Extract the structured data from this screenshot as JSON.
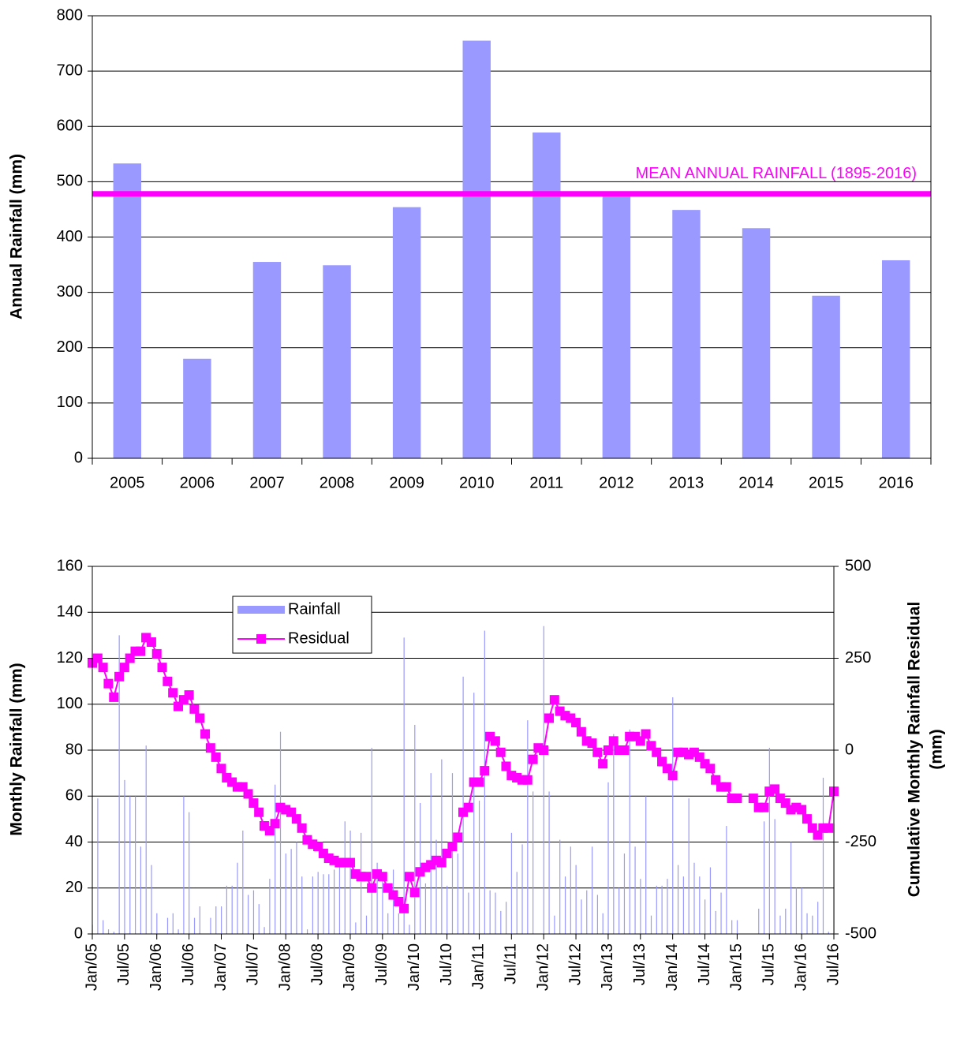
{
  "chart_data": [
    {
      "type": "bar",
      "ylabel": "Annual Rainfall (mm)",
      "categories": [
        "2005",
        "2006",
        "2007",
        "2008",
        "2009",
        "2010",
        "2011",
        "2012",
        "2013",
        "2014",
        "2015",
        "2016"
      ],
      "values": [
        533,
        180,
        355,
        349,
        454,
        755,
        589,
        480,
        449,
        416,
        294,
        358
      ],
      "color": "#9999ff",
      "ylim": [
        0,
        800
      ],
      "yticks": [
        0,
        100,
        200,
        300,
        400,
        500,
        600,
        700,
        800
      ],
      "grid": true,
      "mean_line": {
        "value": 478,
        "label": "MEAN ANNUAL RAINFALL (1895-2016)",
        "color": "#ff00ff"
      }
    },
    {
      "type": "combo",
      "ylabel": "Monthly Rainfall (mm)",
      "y2label": [
        "Cumulative Monthly Rainfall Residual",
        "(mm)"
      ],
      "categories": [
        "Jan/05",
        null,
        null,
        null,
        null,
        null,
        "Jul/05",
        null,
        null,
        null,
        null,
        null,
        "Jan/06",
        null,
        null,
        null,
        null,
        null,
        "Jul/06",
        null,
        null,
        null,
        null,
        null,
        "Jan/07",
        null,
        null,
        null,
        null,
        null,
        "Jul/07",
        null,
        null,
        null,
        null,
        null,
        "Jan/08",
        null,
        null,
        null,
        null,
        null,
        "Jul/08",
        null,
        null,
        null,
        null,
        null,
        "Jan/09",
        null,
        null,
        null,
        null,
        null,
        "Jul/09",
        null,
        null,
        null,
        null,
        null,
        "Jan/10",
        null,
        null,
        null,
        null,
        null,
        "Jul/10",
        null,
        null,
        null,
        null,
        null,
        "Jan/11",
        null,
        null,
        null,
        null,
        null,
        "Jul/11",
        null,
        null,
        null,
        null,
        null,
        "Jan/12",
        null,
        null,
        null,
        null,
        null,
        "Jul/12",
        null,
        null,
        null,
        null,
        null,
        "Jan/13",
        null,
        null,
        null,
        null,
        null,
        "Jul/13",
        null,
        null,
        null,
        null,
        null,
        "Jan/14",
        null,
        null,
        null,
        null,
        null,
        "Jul/14",
        null,
        null,
        null,
        null,
        null,
        "Jan/15",
        null,
        null,
        null,
        null,
        null,
        "Jul/15",
        null,
        null,
        null,
        null,
        null,
        "Jan/16",
        null,
        null,
        null,
        null,
        null,
        "Jul/16"
      ],
      "series": [
        {
          "name": "Rainfall",
          "kind": "bar",
          "color": "#9999ff",
          "values": [
            4,
            59,
            6,
            2,
            1,
            130,
            67,
            60,
            60,
            38,
            82,
            30,
            9,
            0,
            7,
            9,
            2,
            60,
            53,
            7,
            12,
            0,
            7,
            12,
            12,
            21,
            21,
            31,
            45,
            17,
            19,
            13,
            3,
            24,
            65,
            88,
            35,
            37,
            40,
            25,
            2,
            25,
            27,
            26,
            26,
            28,
            30,
            49,
            45,
            5,
            44,
            8,
            81,
            31,
            26,
            9,
            28,
            9,
            129,
            4,
            91,
            57,
            22,
            70,
            41,
            76,
            21,
            70,
            35,
            112,
            18,
            105,
            58,
            132,
            19,
            18,
            10,
            14,
            44,
            27,
            39,
            93,
            62,
            0,
            134,
            62,
            8,
            41,
            25,
            38,
            30,
            15,
            19,
            38,
            17,
            9,
            66,
            87,
            20,
            35,
            89,
            38,
            24,
            60,
            8,
            21,
            21,
            24,
            103,
            30,
            25,
            59,
            31,
            25,
            15,
            29,
            10,
            18,
            47,
            6,
            6,
            0,
            0,
            0,
            11,
            49,
            81,
            50,
            8,
            11,
            40,
            20,
            20,
            9,
            8,
            14,
            68,
            1,
            48
          ]
        },
        {
          "name": "Residual",
          "kind": "line",
          "axis": "y2",
          "color": "#ff00ff",
          "values": [
            237,
            250,
            225,
            181,
            144,
            200,
            225,
            250,
            269,
            269,
            306,
            294,
            262,
            225,
            187,
            156,
            119,
            137,
            150,
            112,
            87,
            44,
            6,
            -19,
            -50,
            -75,
            -87,
            -100,
            -100,
            -119,
            -144,
            -169,
            -206,
            -219,
            -200,
            -156,
            -162,
            -169,
            -187,
            -212,
            -244,
            -256,
            -262,
            -281,
            -294,
            -300,
            -306,
            -306,
            -306,
            -337,
            -344,
            -344,
            -375,
            -337,
            -344,
            -375,
            -394,
            -412,
            -431,
            -344,
            -387,
            -331,
            -319,
            -312,
            -300,
            -306,
            -281,
            -262,
            -237,
            -169,
            -156,
            -87,
            -87,
            -56,
            37,
            25,
            -6,
            -44,
            -69,
            -75,
            -81,
            -81,
            -25,
            6,
            0,
            87,
            137,
            106,
            94,
            87,
            75,
            50,
            25,
            19,
            -6,
            -37,
            0,
            25,
            0,
            0,
            37,
            37,
            25,
            44,
            12,
            -6,
            -31,
            -50,
            -69,
            -6,
            -6,
            -12,
            -6,
            -19,
            -37,
            -50,
            -81,
            -100,
            -100,
            -131,
            -131,
            null,
            null,
            -131,
            -156,
            -156,
            -112,
            -106,
            -131,
            -144,
            -162,
            -156,
            -162,
            -187,
            -212,
            -231,
            -212,
            -212,
            -112
          ]
        }
      ],
      "ylim": [
        0,
        160
      ],
      "yticks": [
        0,
        20,
        40,
        60,
        80,
        100,
        120,
        140,
        160
      ],
      "y2lim": [
        -500,
        500
      ],
      "y2ticks": [
        -500,
        -250,
        0,
        250,
        500
      ],
      "grid": true,
      "legend": "upper-left"
    }
  ]
}
